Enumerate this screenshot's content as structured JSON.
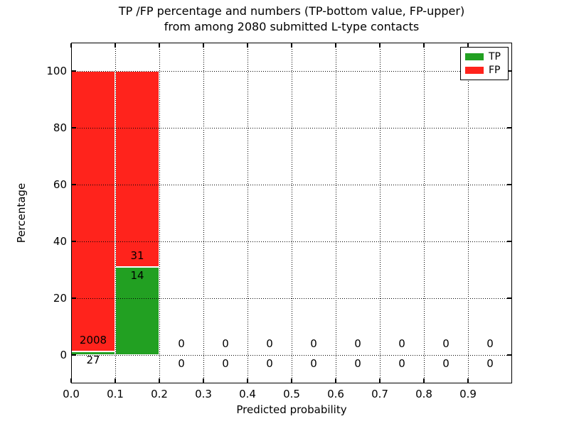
{
  "chart_data": {
    "type": "bar",
    "subtype": "stacked-percentage-histogram",
    "title_lines": [
      "TP /FP percentage and numbers (TP-bottom value, FP-upper)",
      "from among 2080 submitted L-type contacts"
    ],
    "xlabel": "Predicted probability",
    "ylabel": "Percentage",
    "total_submitted": 2080,
    "bin_edges": [
      0.0,
      0.1,
      0.2,
      0.3,
      0.4,
      0.5,
      0.6,
      0.7,
      0.8,
      0.9,
      1.0
    ],
    "x_tick_labels": [
      "0.0",
      "0.1",
      "0.2",
      "0.3",
      "0.4",
      "0.5",
      "0.6",
      "0.7",
      "0.8",
      "0.9"
    ],
    "x_tick_values": [
      0.0,
      0.1,
      0.2,
      0.3,
      0.4,
      0.5,
      0.6,
      0.7,
      0.8,
      0.9
    ],
    "y_tick_labels": [
      "0",
      "20",
      "40",
      "60",
      "80",
      "100"
    ],
    "y_tick_values": [
      0,
      20,
      40,
      60,
      80,
      100
    ],
    "xlim": [
      0.0,
      1.0
    ],
    "ylim": [
      -10,
      110
    ],
    "grid": "dotted",
    "grid_above_bars": true,
    "legend_position": "upper right",
    "series": [
      {
        "name": "TP",
        "color": "#22a022",
        "counts": [
          27,
          14,
          0,
          0,
          0,
          0,
          0,
          0,
          0,
          0
        ]
      },
      {
        "name": "FP",
        "color": "#ff231c",
        "counts": [
          2008,
          31,
          0,
          0,
          0,
          0,
          0,
          0,
          0,
          0
        ]
      }
    ],
    "bar_percentages": {
      "TP": [
        1.33,
        31.11,
        0,
        0,
        0,
        0,
        0,
        0,
        0,
        0
      ],
      "FP": [
        98.67,
        68.89,
        0,
        0,
        0,
        0,
        0,
        0,
        0,
        0
      ]
    },
    "colors": {
      "tp": "#22a022",
      "fp": "#ff231c",
      "text": "#000000",
      "background": "#ffffff"
    }
  }
}
